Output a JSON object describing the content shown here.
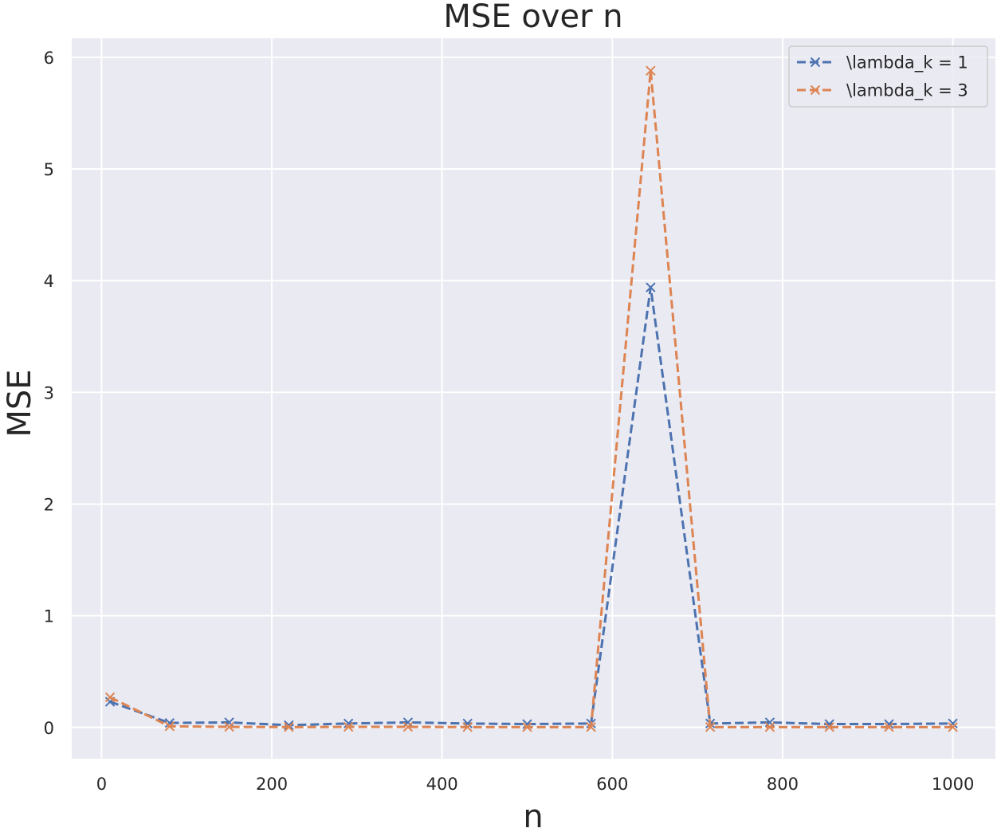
{
  "chart_data": {
    "type": "line",
    "title": "MSE over n",
    "xlabel": "n",
    "ylabel": "MSE",
    "xlim": [
      -35,
      1050
    ],
    "ylim": [
      -0.28,
      6.17
    ],
    "xticks": [
      0,
      200,
      400,
      600,
      800,
      1000
    ],
    "yticks": [
      0,
      1,
      2,
      3,
      4,
      5,
      6
    ],
    "grid": true,
    "legend_position": "top-right",
    "background_color": "#eaeaf2",
    "grid_color": "#ffffff",
    "series": [
      {
        "name": "\\lambda_k = 1",
        "color": "#4c72b0",
        "linestyle": "dashed",
        "marker": "x",
        "x": [
          10,
          80,
          150,
          220,
          290,
          360,
          430,
          500,
          575,
          645,
          715,
          785,
          855,
          925,
          1000
        ],
        "y": [
          0.23,
          0.04,
          0.045,
          0.02,
          0.035,
          0.045,
          0.035,
          0.03,
          0.035,
          3.94,
          0.035,
          0.045,
          0.03,
          0.03,
          0.035
        ]
      },
      {
        "name": "\\lambda_k = 3",
        "color": "#dd8452",
        "linestyle": "dashed",
        "marker": "x",
        "x": [
          10,
          80,
          150,
          220,
          290,
          360,
          430,
          500,
          575,
          645,
          715,
          785,
          855,
          925,
          1000
        ],
        "y": [
          0.27,
          0.01,
          0.005,
          0.003,
          0.005,
          0.005,
          0.003,
          0.003,
          0.003,
          5.88,
          0.003,
          0.003,
          0.003,
          0.003,
          0.003
        ]
      }
    ]
  }
}
